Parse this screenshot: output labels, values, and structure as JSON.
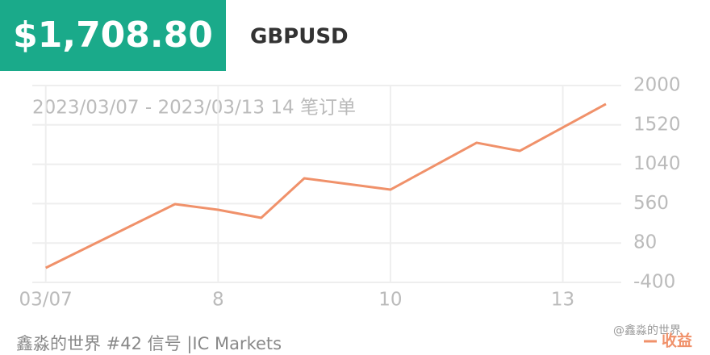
{
  "header": {
    "price": "$1,708.80",
    "symbol": "GBPUSD"
  },
  "chart_data": {
    "type": "line",
    "subtitle": "2023/03/07 - 2023/03/13 14 笔订单",
    "x": [
      0,
      3,
      4,
      5,
      6,
      8,
      10,
      11,
      13
    ],
    "series": [
      {
        "name": "收益",
        "color": "#f0916a",
        "values": [
          -223,
          554,
          485,
          387,
          869,
          731,
          1302,
          1203,
          1774
        ]
      }
    ],
    "xlim": [
      -0.2,
      13.3
    ],
    "xticks": [
      {
        "value": 0,
        "label": "03/07"
      },
      {
        "value": 4,
        "label": "8"
      },
      {
        "value": 8,
        "label": "10"
      },
      {
        "value": 12,
        "label": "13"
      }
    ],
    "ylim": [
      -400,
      2000
    ],
    "yticks": [
      -400,
      80,
      560,
      1040,
      1520,
      2000
    ],
    "grid": true
  },
  "footer": {
    "source": "鑫淼的世界 #42 信号 |IC Markets",
    "watermark": "@鑫淼的世界"
  }
}
